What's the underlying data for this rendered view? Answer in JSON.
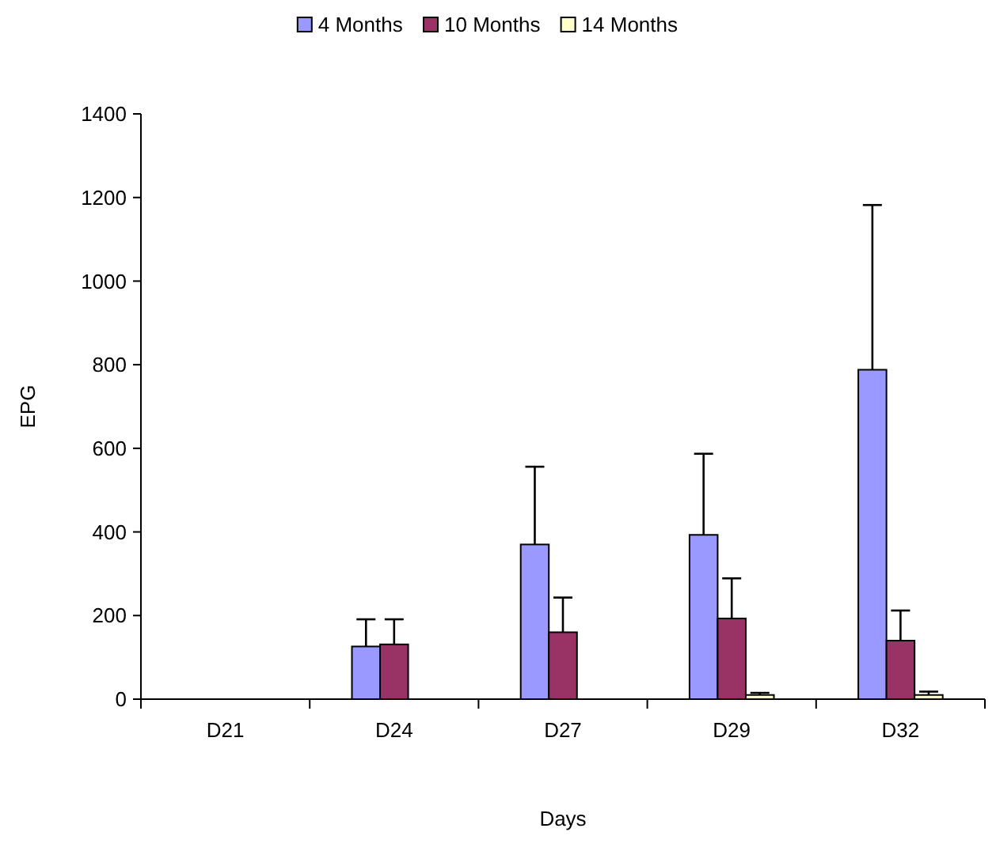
{
  "chart_data": {
    "type": "bar",
    "xlabel": "Days",
    "ylabel": "EPG",
    "categories": [
      "D21",
      "D24",
      "D27",
      "D29",
      "D32"
    ],
    "ylim": [
      0,
      1400
    ],
    "yticks": [
      0,
      200,
      400,
      600,
      800,
      1000,
      1200,
      1400
    ],
    "grid": false,
    "legend": "top",
    "series": [
      {
        "name": "4 Months",
        "color": "#9999ff",
        "values": [
          0,
          126,
          370,
          393,
          788
        ],
        "errors": [
          null,
          [
            126,
            191
          ],
          [
            370,
            556
          ],
          [
            393,
            587
          ],
          [
            788,
            1182
          ]
        ]
      },
      {
        "name": "10 Months",
        "color": "#993366",
        "values": [
          0,
          131,
          160,
          193,
          140
        ],
        "errors": [
          null,
          [
            131,
            191
          ],
          [
            160,
            243
          ],
          [
            193,
            289
          ],
          [
            140,
            212
          ]
        ]
      },
      {
        "name": "14 Months",
        "color": "#ffffcc",
        "values": [
          0,
          0,
          0,
          10,
          10
        ],
        "errors": [
          null,
          null,
          null,
          [
            10,
            15
          ],
          [
            10,
            18
          ]
        ]
      }
    ]
  }
}
